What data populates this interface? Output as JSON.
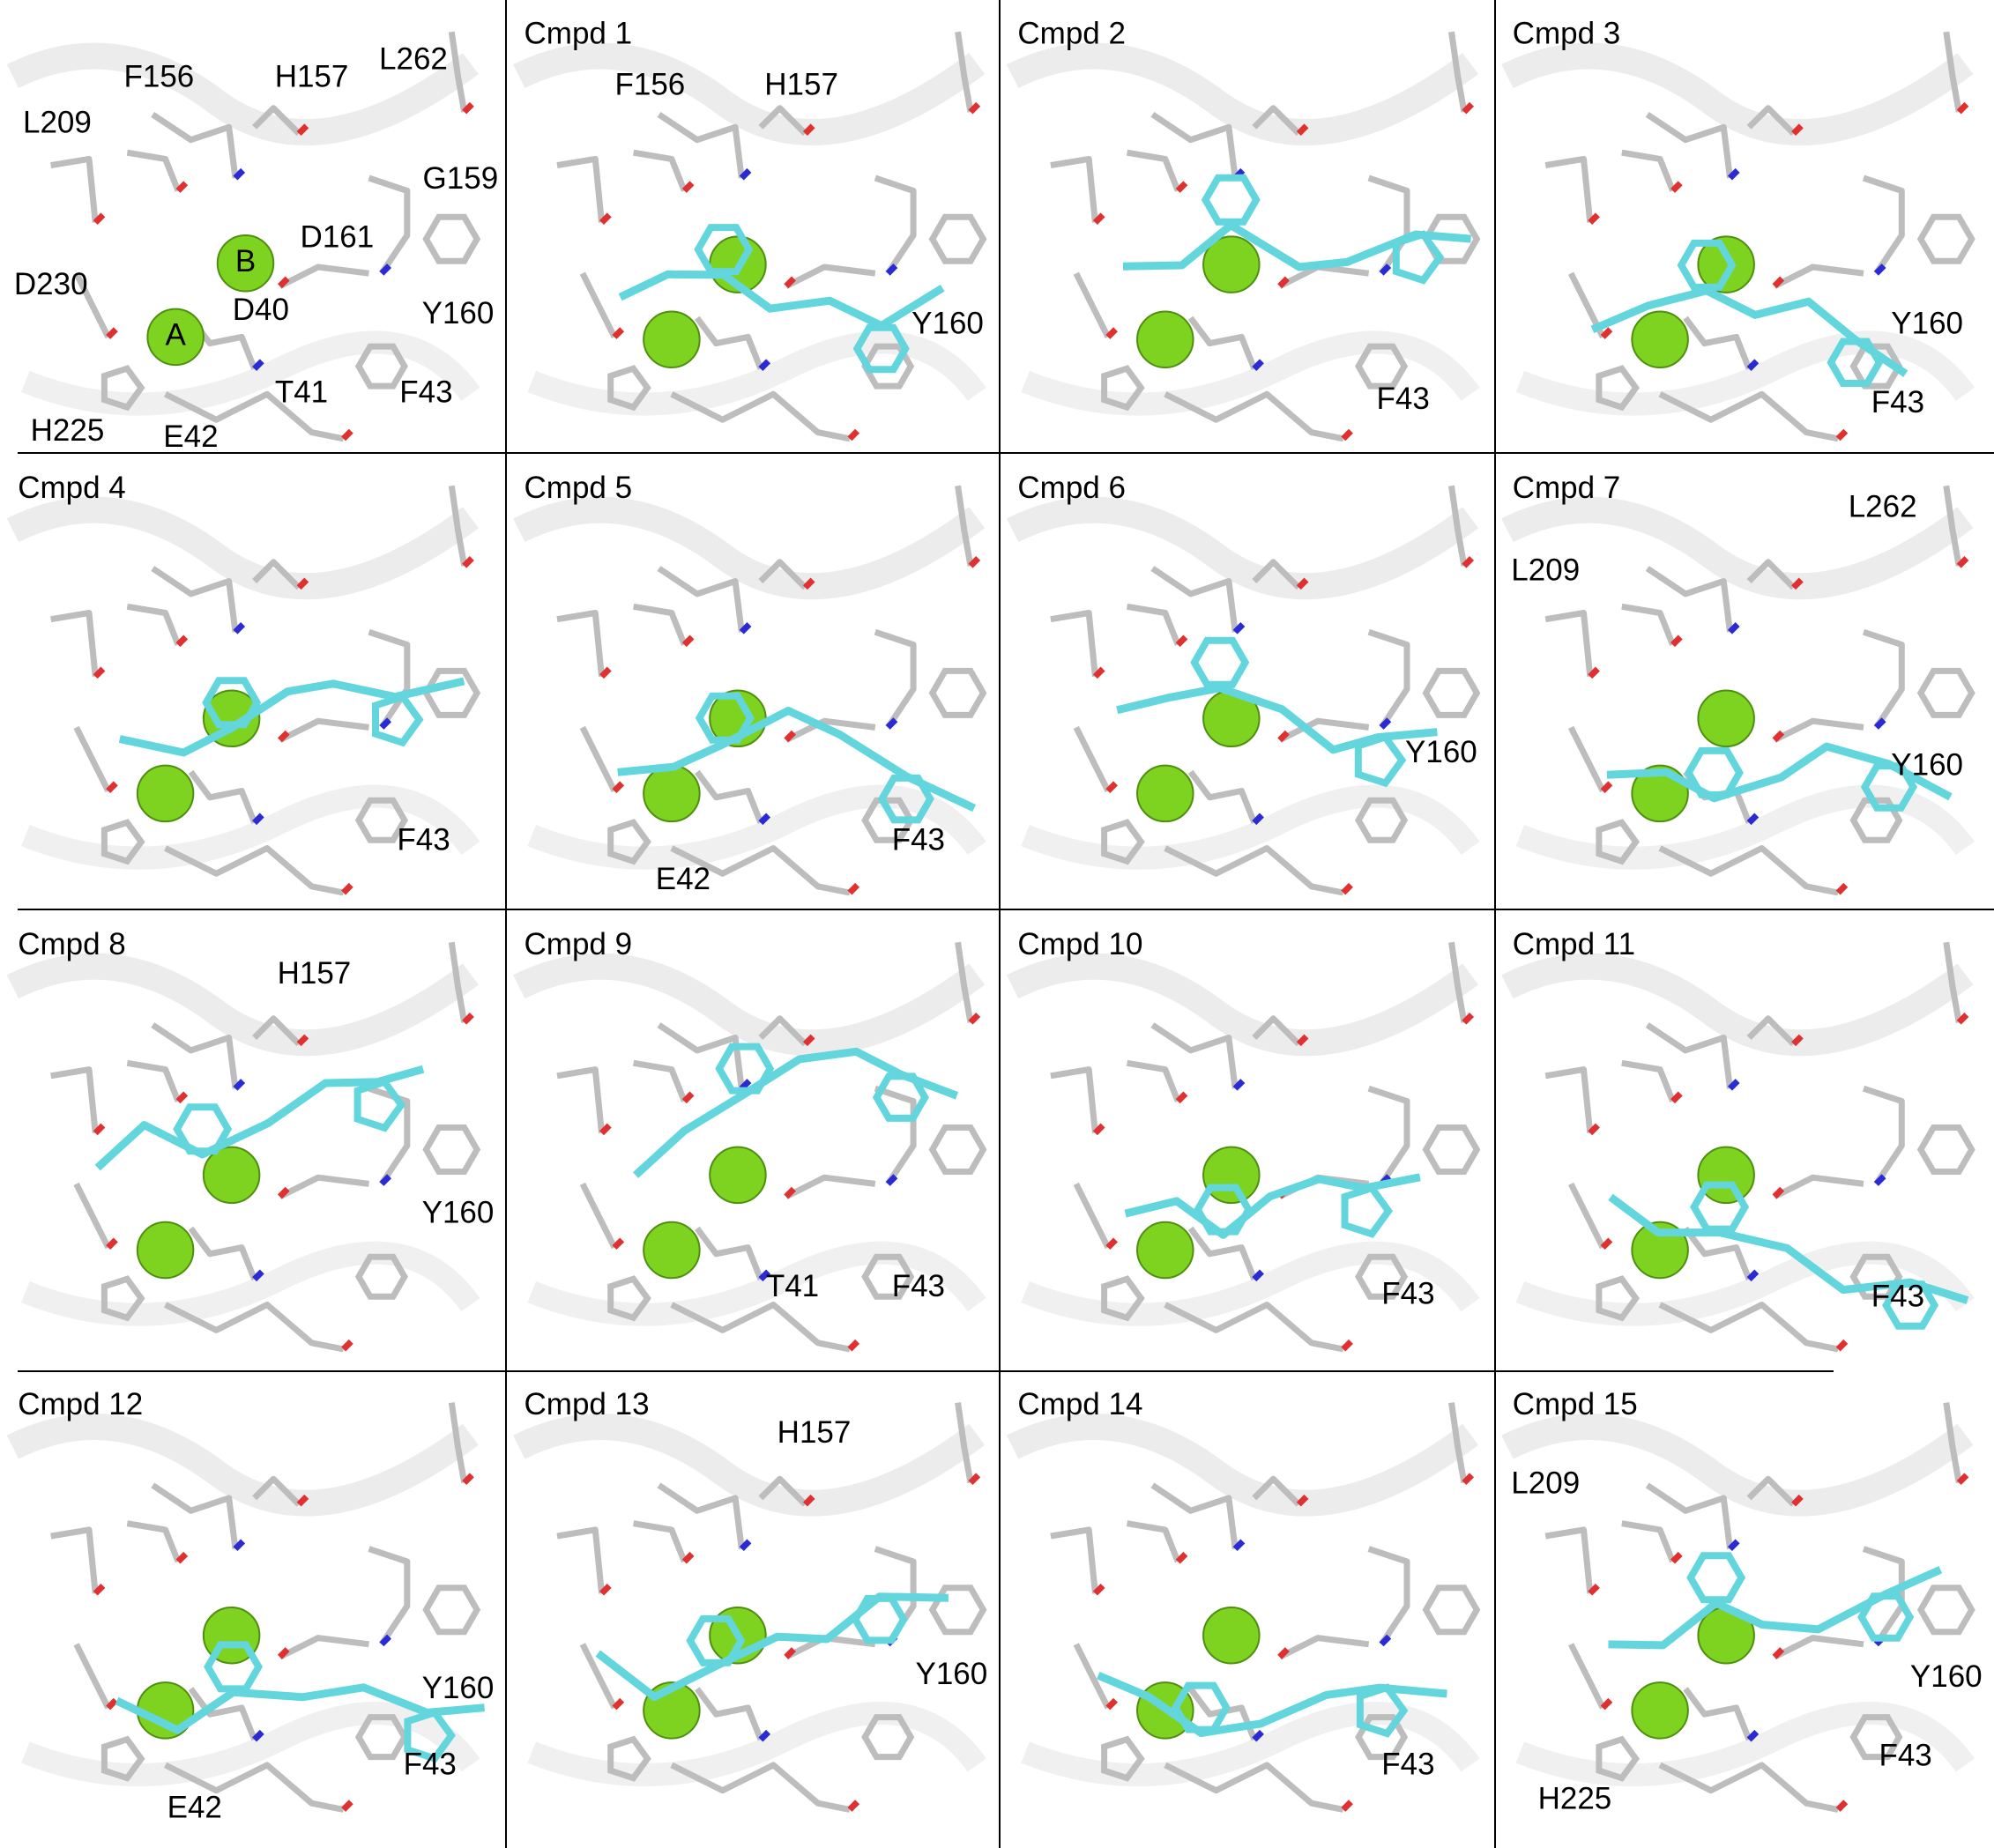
{
  "panels": [
    {
      "labels": [
        "F156",
        "H157",
        "L262",
        "L209",
        "G159",
        "D161",
        "D230",
        "D40",
        "Y160",
        "T41",
        "F43",
        "H225",
        "E42"
      ],
      "sphere_labels": [
        "A",
        "B"
      ]
    },
    {
      "title": "Cmpd 1",
      "labels": [
        "F156",
        "H157",
        "Y160"
      ]
    },
    {
      "title": "Cmpd 2",
      "labels": [
        "F43"
      ]
    },
    {
      "title": "Cmpd 3",
      "labels": [
        "Y160",
        "F43"
      ]
    },
    {
      "title": "Cmpd 4",
      "labels": [
        "F43"
      ]
    },
    {
      "title": "Cmpd 5",
      "labels": [
        "F43",
        "E42"
      ]
    },
    {
      "title": "Cmpd 6",
      "labels": [
        "Y160"
      ]
    },
    {
      "title": "Cmpd 7",
      "labels": [
        "L262",
        "L209",
        "Y160"
      ]
    },
    {
      "title": "Cmpd 8",
      "labels": [
        "H157",
        "Y160"
      ]
    },
    {
      "title": "Cmpd 9",
      "labels": [
        "T41",
        "F43"
      ]
    },
    {
      "title": "Cmpd 10",
      "labels": [
        "F43"
      ]
    },
    {
      "title": "Cmpd 11",
      "labels": [
        "F43"
      ]
    },
    {
      "title": "Cmpd 12",
      "labels": [
        "Y160",
        "F43",
        "E42"
      ]
    },
    {
      "title": "Cmpd 13",
      "labels": [
        "H157",
        "Y160"
      ]
    },
    {
      "title": "Cmpd 14",
      "labels": [
        "F43"
      ]
    },
    {
      "title": "Cmpd 15",
      "labels": [
        "L209",
        "Y160",
        "F43",
        "H225"
      ]
    }
  ]
}
